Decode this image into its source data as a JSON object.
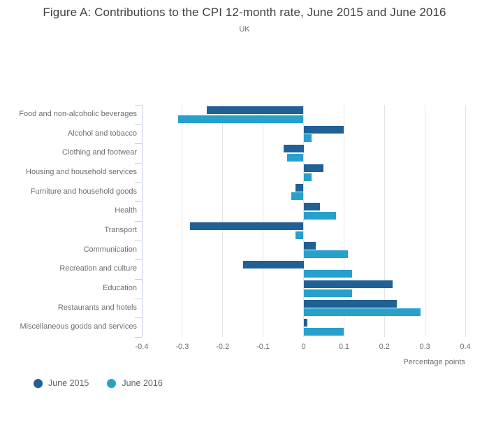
{
  "chart_data": {
    "type": "bar",
    "orientation": "horizontal",
    "title": "Figure A: Contributions to the CPI 12-month rate, June 2015 and June 2016",
    "subtitle": "UK",
    "xlabel": "Percentage points",
    "xlim": [
      -0.4,
      0.4
    ],
    "xticks": [
      -0.4,
      -0.3,
      -0.2,
      -0.1,
      0,
      0.1,
      0.2,
      0.3,
      0.4
    ],
    "xtick_labels": [
      "-0.4",
      "-0.3",
      "-0.2",
      "-0.1",
      "0",
      "0.1",
      "0.2",
      "0.3",
      "0.4"
    ],
    "grid": true,
    "legend_position": "bottom-left",
    "categories": [
      "Food and non-alcoholic beverages",
      "Alcohol and tobacco",
      "Clothing and footwear",
      "Housing and household services",
      "Furniture and household goods",
      "Health",
      "Transport",
      "Communication",
      "Recreation and culture",
      "Education",
      "Restaurants and hotels",
      "Miscellaneous goods and services"
    ],
    "series": [
      {
        "name": "June 2015",
        "color": "#206095",
        "values": [
          -0.24,
          0.1,
          -0.05,
          0.05,
          -0.02,
          0.04,
          -0.28,
          0.03,
          -0.15,
          0.22,
          0.23,
          0.01
        ]
      },
      {
        "name": "June 2016",
        "color": "#27a0cc",
        "values": [
          -0.31,
          0.02,
          -0.04,
          0.02,
          -0.03,
          0.08,
          -0.02,
          0.11,
          0.12,
          0.12,
          0.29,
          0.1
        ]
      }
    ],
    "colors": {
      "grid": "#e3e3e3",
      "axis": "#c5cfe2",
      "title_text": "#414042",
      "label_text": "#6d6e71"
    }
  }
}
